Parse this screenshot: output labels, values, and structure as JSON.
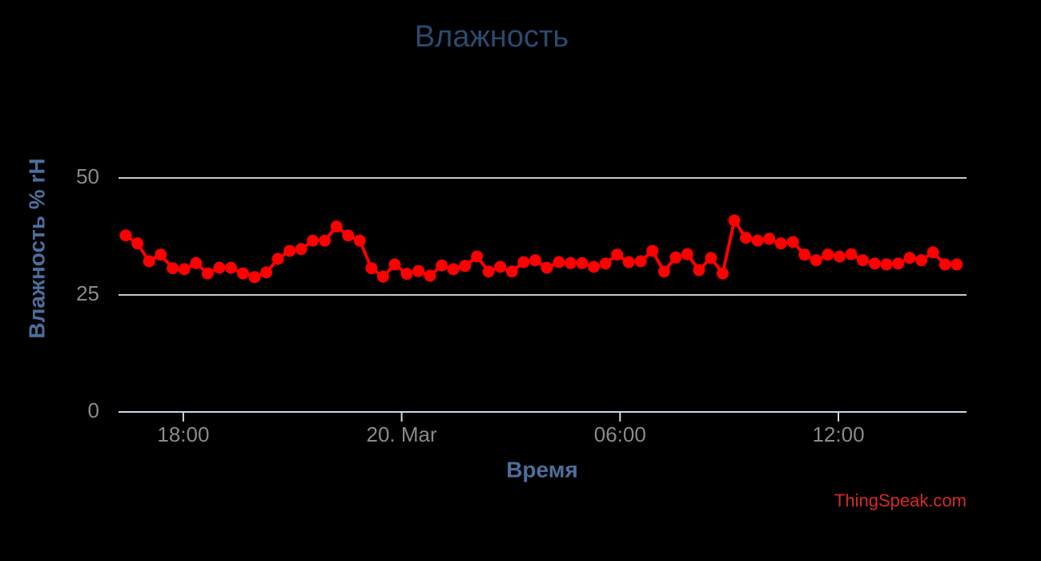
{
  "chart_data": {
    "type": "line",
    "title": "Влажность",
    "xlabel": "Время",
    "ylabel": "Влажность % rH",
    "credit": "ThingSpeak.com",
    "x": [
      16.42,
      16.74,
      17.06,
      17.38,
      17.71,
      18.03,
      18.35,
      18.67,
      18.99,
      19.31,
      19.64,
      19.96,
      20.28,
      20.6,
      20.92,
      21.24,
      21.56,
      21.89,
      22.21,
      22.53,
      22.85,
      23.17,
      23.49,
      23.81,
      24.14,
      24.46,
      24.78,
      25.1,
      25.42,
      25.74,
      26.07,
      26.39,
      26.71,
      27.03,
      27.35,
      27.67,
      27.99,
      28.32,
      28.64,
      28.96,
      29.28,
      29.6,
      29.92,
      30.24,
      30.57,
      30.89,
      31.21,
      31.53,
      31.85,
      32.17,
      32.5,
      32.82,
      33.14,
      33.46,
      33.78,
      34.1,
      34.42,
      34.75,
      35.07,
      35.39,
      35.71,
      36.03,
      36.35,
      36.67,
      37.0,
      37.32,
      37.64,
      37.96,
      38.28,
      38.6,
      38.93,
      39.25
    ],
    "values": [
      37.7,
      36.0,
      32.2,
      33.6,
      30.7,
      30.5,
      31.8,
      29.6,
      30.8,
      30.8,
      29.6,
      28.8,
      29.8,
      32.7,
      34.4,
      34.8,
      36.6,
      36.6,
      39.6,
      37.7,
      36.6,
      30.7,
      28.9,
      31.5,
      29.5,
      30.1,
      29.1,
      31.3,
      30.5,
      31.2,
      33.2,
      30.0,
      31.0,
      30.0,
      32.0,
      32.4,
      30.8,
      32.0,
      31.8,
      31.8,
      31.0,
      31.7,
      33.6,
      32.0,
      32.2,
      34.4,
      30.0,
      33.0,
      33.7,
      30.3,
      32.9,
      29.6,
      40.9,
      37.2,
      36.6,
      37.0,
      36.0,
      36.3,
      33.6,
      32.4,
      33.6,
      33.2,
      33.7,
      32.4,
      31.7,
      31.5,
      31.7,
      32.9,
      32.4,
      34.1,
      31.5,
      31.5
    ],
    "color": "#ff0000",
    "xlim": [
      16.22,
      39.52
    ],
    "xticks": [
      {
        "value": 18,
        "label": "18:00"
      },
      {
        "value": 24,
        "label": "20. Mar"
      },
      {
        "value": 30,
        "label": "06:00"
      },
      {
        "value": 36,
        "label": "12:00"
      }
    ],
    "ylim": [
      0,
      50
    ],
    "yticks": [
      0,
      25,
      50
    ],
    "grid": true
  }
}
